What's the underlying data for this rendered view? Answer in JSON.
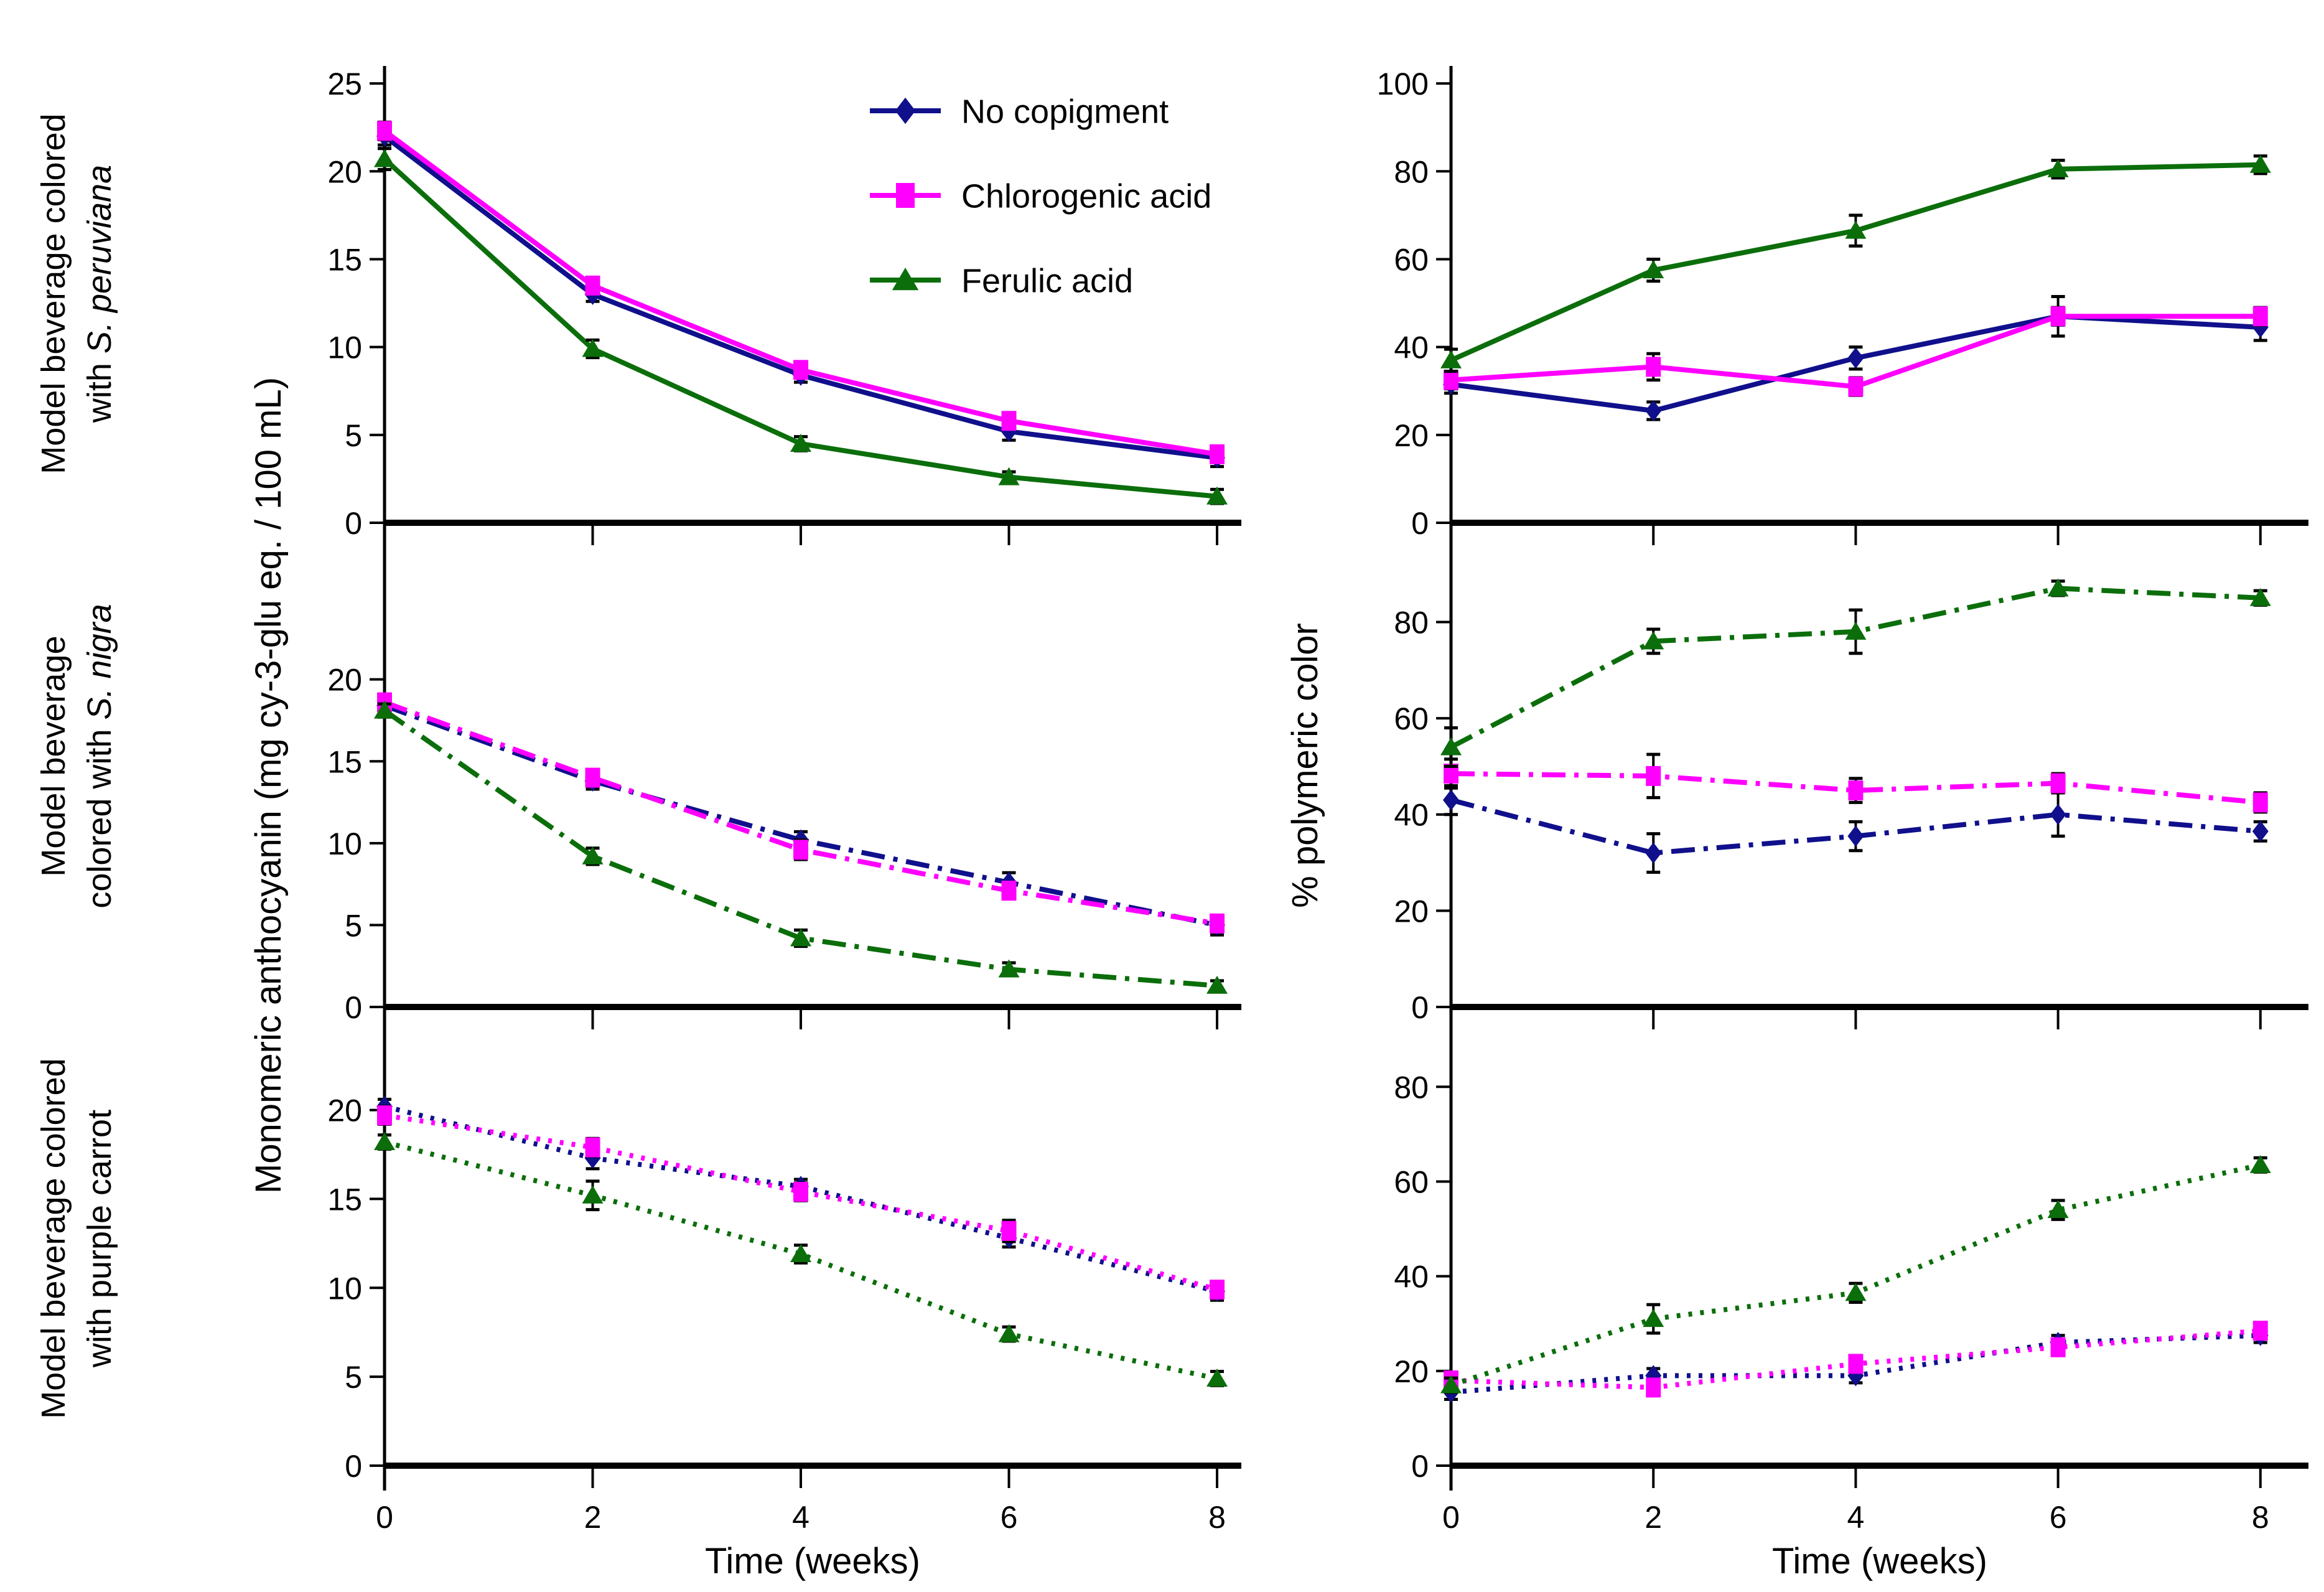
{
  "figure": {
    "left_axis_label": "Monomeric anthocyanin (mg cy-3-glu eq. / 100 mL)",
    "right_axis_label": "% polymeric color",
    "x_axis_label": "Time (weeks)",
    "x_ticks": [
      "0",
      "2",
      "4",
      "6",
      "8"
    ],
    "row_labels": [
      {
        "line1": "Model beverage colored",
        "line2_pre": "with ",
        "line2_italic": "S. peruviana",
        "line2_post": ""
      },
      {
        "line1": "Model beverage",
        "line2_pre": "colored with ",
        "line2_italic": "S. nigra",
        "line2_post": ""
      },
      {
        "line1": "Model beverage colored",
        "line2_pre": "with purple carrot",
        "line2_italic": "",
        "line2_post": ""
      }
    ],
    "legend": {
      "position": "top-left-panel",
      "items": [
        {
          "label": "No copigment",
          "marker": "diamond",
          "color": "#10108C"
        },
        {
          "label": "Chlorogenic acid",
          "marker": "square",
          "color": "#FF00FF"
        },
        {
          "label": "Ferulic acid",
          "marker": "triangle",
          "color": "#0B6E0B"
        }
      ]
    },
    "colors": {
      "axis": "#000000",
      "error_bar": "#000000",
      "background": "#FFFFFF"
    }
  },
  "chart_data": [
    {
      "id": "peruviana-monomeric",
      "type": "line",
      "row": 0,
      "col": 0,
      "group": "Model beverage colored with S. peruviana",
      "ylabel": "Monomeric anthocyanin (mg cy-3-glu eq. / 100 mL)",
      "x": [
        0,
        2,
        4,
        6,
        8
      ],
      "ylim": [
        0,
        25.5
      ],
      "yticks": [
        0,
        5,
        10,
        15,
        20,
        25
      ],
      "linestyle": "solid",
      "show_x_labels": false,
      "grid": false,
      "series": [
        {
          "name": "No copigment",
          "values": [
            22.0,
            13.0,
            8.4,
            5.2,
            3.7
          ],
          "errors": [
            0.5,
            0.4,
            0.4,
            0.5,
            0.5
          ]
        },
        {
          "name": "Chlorogenic acid",
          "values": [
            22.3,
            13.5,
            8.7,
            5.8,
            3.9
          ],
          "errors": [
            0.5,
            0.4,
            0.4,
            0.4,
            0.4
          ]
        },
        {
          "name": "Ferulic acid",
          "values": [
            20.7,
            9.9,
            4.5,
            2.6,
            1.5
          ],
          "errors": [
            0.6,
            0.5,
            0.4,
            0.3,
            0.4
          ]
        }
      ]
    },
    {
      "id": "peruviana-polymeric",
      "type": "line",
      "row": 0,
      "col": 1,
      "group": "Model beverage colored with S. peruviana",
      "ylabel": "% polymeric color",
      "x": [
        0,
        2,
        4,
        6,
        8
      ],
      "ylim": [
        0,
        102
      ],
      "yticks": [
        0,
        20,
        40,
        60,
        80,
        100
      ],
      "linestyle": "solid",
      "show_x_labels": false,
      "grid": false,
      "series": [
        {
          "name": "No copigment",
          "values": [
            31.5,
            25.5,
            37.5,
            47.0,
            44.5
          ],
          "errors": [
            2.0,
            2.0,
            2.5,
            4.5,
            3.0
          ]
        },
        {
          "name": "Chlorogenic acid",
          "values": [
            32.5,
            35.5,
            31.0,
            47.0,
            47.0
          ],
          "errors": [
            2.0,
            3.0,
            2.0,
            2.0,
            2.0
          ]
        },
        {
          "name": "Ferulic acid",
          "values": [
            37.0,
            57.5,
            66.5,
            80.5,
            81.5
          ],
          "errors": [
            2.5,
            2.5,
            3.5,
            2.0,
            2.0
          ]
        }
      ]
    },
    {
      "id": "nigra-monomeric",
      "type": "line",
      "row": 1,
      "col": 0,
      "group": "Model beverage colored with S. nigra",
      "ylabel": "Monomeric anthocyanin (mg cy-3-glu eq. / 100 mL)",
      "x": [
        0,
        2,
        4,
        6,
        8
      ],
      "ylim": [
        0,
        28.5
      ],
      "yticks": [
        0,
        5,
        10,
        15,
        20
      ],
      "linestyle": "dashdot",
      "show_x_labels": false,
      "grid": false,
      "series": [
        {
          "name": "No copigment",
          "values": [
            18.4,
            13.8,
            10.2,
            7.6,
            5.0
          ],
          "errors": [
            0.4,
            0.5,
            0.5,
            0.6,
            0.6
          ]
        },
        {
          "name": "Chlorogenic acid",
          "values": [
            18.6,
            14.0,
            9.6,
            7.1,
            5.1
          ],
          "errors": [
            0.5,
            0.5,
            0.6,
            0.5,
            0.5
          ]
        },
        {
          "name": "Ferulic acid",
          "values": [
            18.1,
            9.2,
            4.2,
            2.3,
            1.3
          ],
          "errors": [
            0.4,
            0.5,
            0.5,
            0.4,
            0.3
          ]
        }
      ]
    },
    {
      "id": "nigra-polymeric",
      "type": "line",
      "row": 1,
      "col": 1,
      "group": "Model beverage colored with S. nigra",
      "ylabel": "% polymeric color",
      "x": [
        0,
        2,
        4,
        6,
        8
      ],
      "ylim": [
        0,
        97
      ],
      "yticks": [
        0,
        20,
        40,
        60,
        80
      ],
      "linestyle": "dashdot",
      "show_x_labels": false,
      "grid": false,
      "series": [
        {
          "name": "No copigment",
          "values": [
            43.0,
            32.0,
            35.5,
            40.0,
            36.5
          ],
          "errors": [
            3.0,
            4.0,
            3.0,
            4.5,
            2.0
          ]
        },
        {
          "name": "Chlorogenic acid",
          "values": [
            48.5,
            48.0,
            45.0,
            46.5,
            42.5
          ],
          "errors": [
            3.0,
            4.5,
            2.5,
            2.0,
            2.0
          ]
        },
        {
          "name": "Ferulic acid",
          "values": [
            54.0,
            76.0,
            78.0,
            87.0,
            85.0
          ],
          "errors": [
            4.0,
            2.5,
            4.5,
            1.5,
            1.5
          ]
        }
      ]
    },
    {
      "id": "carrot-monomeric",
      "type": "line",
      "row": 2,
      "col": 0,
      "group": "Model beverage colored with purple carrot",
      "ylabel": "Monomeric anthocyanin (mg cy-3-glu eq. / 100 mL)",
      "x": [
        0,
        2,
        4,
        6,
        8
      ],
      "ylim": [
        0,
        24.5
      ],
      "yticks": [
        0,
        5,
        10,
        15,
        20
      ],
      "linestyle": "dotted",
      "show_x_labels": true,
      "grid": false,
      "series": [
        {
          "name": "No copigment",
          "values": [
            20.2,
            17.3,
            15.7,
            12.8,
            9.8
          ],
          "errors": [
            0.4,
            0.6,
            0.4,
            0.5,
            0.5
          ]
        },
        {
          "name": "Chlorogenic acid",
          "values": [
            19.7,
            17.9,
            15.4,
            13.2,
            9.9
          ],
          "errors": [
            0.5,
            0.5,
            0.5,
            0.6,
            0.4
          ]
        },
        {
          "name": "Ferulic acid",
          "values": [
            18.2,
            15.2,
            11.9,
            7.4,
            4.9
          ],
          "errors": [
            0.4,
            0.8,
            0.5,
            0.4,
            0.4
          ]
        }
      ]
    },
    {
      "id": "carrot-polymeric",
      "type": "line",
      "row": 2,
      "col": 1,
      "group": "Model beverage colored with purple carrot",
      "ylabel": "% polymeric color",
      "x": [
        0,
        2,
        4,
        6,
        8
      ],
      "ylim": [
        0,
        92
      ],
      "yticks": [
        0,
        20,
        40,
        60,
        80
      ],
      "linestyle": "dotted",
      "show_x_labels": true,
      "grid": false,
      "series": [
        {
          "name": "No copigment",
          "values": [
            15.5,
            19.0,
            19.0,
            26.0,
            27.5
          ],
          "errors": [
            1.5,
            1.5,
            1.5,
            1.5,
            1.5
          ]
        },
        {
          "name": "Chlorogenic acid",
          "values": [
            18.0,
            16.5,
            21.5,
            25.0,
            28.5
          ],
          "errors": [
            1.5,
            1.5,
            1.5,
            1.5,
            1.5
          ]
        },
        {
          "name": "Ferulic acid",
          "values": [
            17.0,
            31.0,
            36.5,
            54.0,
            63.5
          ],
          "errors": [
            1.5,
            3.0,
            2.0,
            2.0,
            1.5
          ]
        }
      ]
    }
  ]
}
